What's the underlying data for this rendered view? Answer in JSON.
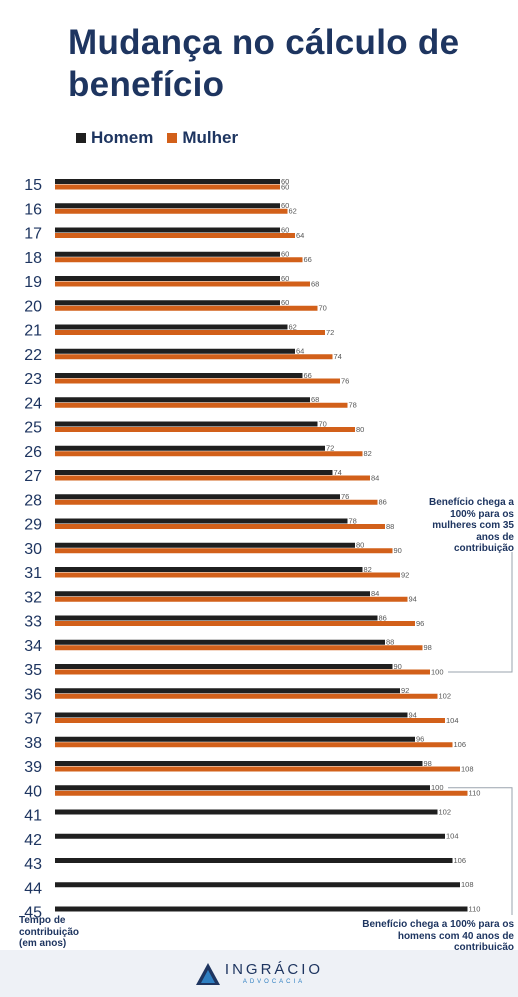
{
  "title": "Mudança no cálculo de benefício",
  "legend": [
    {
      "label": "Homem",
      "color": "#1f1f1f"
    },
    {
      "label": "Mulher",
      "color": "#d2601a"
    }
  ],
  "chart_data": {
    "type": "bar",
    "orientation": "horizontal",
    "categories": [
      "15",
      "16",
      "17",
      "18",
      "19",
      "20",
      "21",
      "22",
      "23",
      "24",
      "25",
      "26",
      "27",
      "28",
      "29",
      "30",
      "31",
      "32",
      "33",
      "34",
      "35",
      "36",
      "37",
      "38",
      "39",
      "40",
      "41",
      "42",
      "43",
      "44",
      "45"
    ],
    "series": [
      {
        "name": "Homem",
        "color": "#1f1f1f",
        "values": [
          60,
          60,
          60,
          60,
          60,
          60,
          62,
          64,
          66,
          68,
          70,
          72,
          74,
          76,
          78,
          80,
          82,
          84,
          86,
          88,
          90,
          92,
          94,
          96,
          98,
          100,
          102,
          104,
          106,
          108,
          110
        ]
      },
      {
        "name": "Mulher",
        "color": "#d2601a",
        "values": [
          60,
          62,
          64,
          66,
          68,
          70,
          72,
          74,
          76,
          78,
          80,
          82,
          84,
          86,
          88,
          90,
          92,
          94,
          96,
          98,
          100,
          102,
          104,
          106,
          108,
          110,
          null,
          null,
          null,
          null,
          null
        ]
      }
    ],
    "xlabel": "",
    "ylabel": "Tempo de contribuição (em anos)",
    "annotations": [
      {
        "text": "Benefício chega a 100% para os mulheres com 35 anos de contribuição",
        "category": "35",
        "series": "Mulher"
      },
      {
        "text": "Benefício chega a 100% para os homens com 40 anos de contribuição",
        "category": "40",
        "series": "Homem"
      }
    ],
    "grid": false,
    "legend_position": "top-left"
  },
  "notes": {
    "women": "Benefício chega a 100% para os mulheres com 35 anos de contribuição",
    "men": "Benefício chega a 100% para os homens com 40 anos de contribuição"
  },
  "axis_caption": "Tempo de contribuição (em anos)",
  "footer": {
    "brand": "INGRÁCIO",
    "sub": "ADVOCACIA",
    "logo_colors": [
      "#1e3560",
      "#2f7fc1"
    ]
  }
}
